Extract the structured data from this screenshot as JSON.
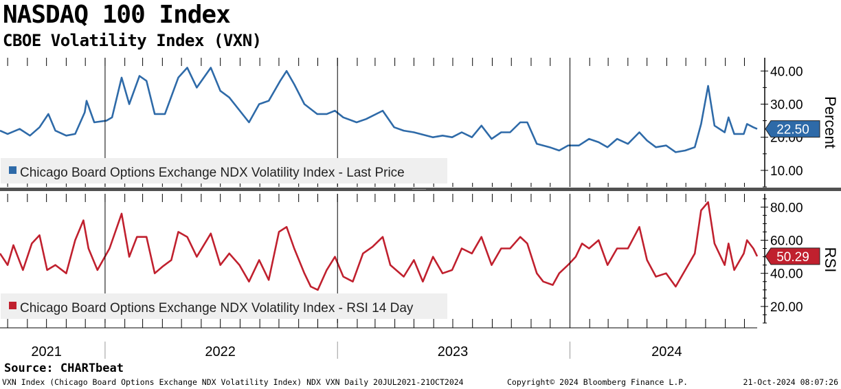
{
  "header": {
    "title": "NASDAQ 100 Index",
    "subtitle": "CBOE Volatility Index (VXN)"
  },
  "footer": {
    "source": "Source: CHARTbeat",
    "left": "VXN Index (Chicago Board Options Exchange NDX Volatility Index) NDX VXN  Daily 20JUL2021-21OCT2024",
    "middle": "Copyright© 2024 Bloomberg Finance L.P.",
    "right": "21-Oct-2024 08:07:26"
  },
  "colors": {
    "vxn_line": "#2e6aa8",
    "rsi_line": "#c0202e",
    "panel_divider": "#505050",
    "legend_bg": "#efefef"
  },
  "chart_data": [
    {
      "type": "line",
      "panel": "top",
      "axis_title": "Percent",
      "legend": "Chicago Board Options Exchange NDX Volatility Index - Last Price",
      "legend_placement": "bottom-left",
      "last_value_label": "22.50",
      "ylim": [
        5,
        44
      ],
      "yticks": [
        10,
        20,
        30,
        40
      ],
      "ytick_labels": [
        "10.00",
        "20.00",
        "30.00",
        "40.00"
      ],
      "grid": false,
      "x_start": "2021-07-20",
      "x_end": "2024-10-21",
      "year_labels": [
        "2021",
        "2022",
        "2023",
        "2024"
      ],
      "year_label_dates": [
        "2021-10-01",
        "2022-07-01",
        "2023-07-01",
        "2024-06-01"
      ],
      "year_starts": [
        "2022-01-01",
        "2023-01-01",
        "2024-01-01"
      ],
      "series": [
        {
          "name": "Chicago Board Options Exchange NDX Volatility Index - Last Price",
          "points": [
            [
              "2021-07-20",
              22
            ],
            [
              "2021-08-01",
              21
            ],
            [
              "2021-08-20",
              22.5
            ],
            [
              "2021-09-05",
              20.5
            ],
            [
              "2021-09-20",
              23
            ],
            [
              "2021-10-04",
              27
            ],
            [
              "2021-10-15",
              22
            ],
            [
              "2021-11-01",
              20.5
            ],
            [
              "2021-11-15",
              21
            ],
            [
              "2021-11-30",
              27.5
            ],
            [
              "2021-12-03",
              31
            ],
            [
              "2021-12-15",
              24.5
            ],
            [
              "2022-01-03",
              25
            ],
            [
              "2022-01-12",
              26
            ],
            [
              "2022-01-27",
              38
            ],
            [
              "2022-02-08",
              30
            ],
            [
              "2022-02-24",
              38.5
            ],
            [
              "2022-03-07",
              37
            ],
            [
              "2022-03-20",
              27
            ],
            [
              "2022-04-05",
              27
            ],
            [
              "2022-04-26",
              38
            ],
            [
              "2022-05-10",
              41
            ],
            [
              "2022-05-25",
              35
            ],
            [
              "2022-06-16",
              41
            ],
            [
              "2022-07-01",
              34
            ],
            [
              "2022-07-15",
              32
            ],
            [
              "2022-08-15",
              24.5
            ],
            [
              "2022-08-31",
              30
            ],
            [
              "2022-09-15",
              31
            ],
            [
              "2022-10-03",
              37
            ],
            [
              "2022-10-13",
              40
            ],
            [
              "2022-10-25",
              36
            ],
            [
              "2022-11-10",
              30
            ],
            [
              "2022-11-30",
              27
            ],
            [
              "2022-12-15",
              27
            ],
            [
              "2022-12-28",
              28
            ],
            [
              "2023-01-10",
              26
            ],
            [
              "2023-01-31",
              24.5
            ],
            [
              "2023-02-15",
              25.5
            ],
            [
              "2023-03-13",
              28
            ],
            [
              "2023-03-31",
              23
            ],
            [
              "2023-04-15",
              22
            ],
            [
              "2023-05-01",
              21.5
            ],
            [
              "2023-05-31",
              20
            ],
            [
              "2023-06-15",
              20.5
            ],
            [
              "2023-06-30",
              20
            ],
            [
              "2023-07-15",
              21.5
            ],
            [
              "2023-07-31",
              20
            ],
            [
              "2023-08-15",
              23.5
            ],
            [
              "2023-08-31",
              19.5
            ],
            [
              "2023-09-15",
              21.5
            ],
            [
              "2023-09-29",
              21.5
            ],
            [
              "2023-10-15",
              24.5
            ],
            [
              "2023-10-26",
              24.5
            ],
            [
              "2023-11-10",
              18
            ],
            [
              "2023-11-30",
              17
            ],
            [
              "2023-12-15",
              16
            ],
            [
              "2023-12-29",
              17.5
            ],
            [
              "2024-01-15",
              17.5
            ],
            [
              "2024-01-31",
              19.5
            ],
            [
              "2024-02-15",
              18.5
            ],
            [
              "2024-02-29",
              17
            ],
            [
              "2024-03-15",
              19.5
            ],
            [
              "2024-04-01",
              18
            ],
            [
              "2024-04-19",
              21.5
            ],
            [
              "2024-05-01",
              19
            ],
            [
              "2024-05-15",
              17
            ],
            [
              "2024-05-31",
              17.5
            ],
            [
              "2024-06-15",
              15.5
            ],
            [
              "2024-06-30",
              16
            ],
            [
              "2024-07-15",
              17
            ],
            [
              "2024-07-25",
              24
            ],
            [
              "2024-08-05",
              35.5
            ],
            [
              "2024-08-15",
              23.5
            ],
            [
              "2024-08-31",
              21.5
            ],
            [
              "2024-09-06",
              26
            ],
            [
              "2024-09-15",
              21
            ],
            [
              "2024-09-30",
              21
            ],
            [
              "2024-10-05",
              24
            ],
            [
              "2024-10-15",
              23
            ],
            [
              "2024-10-21",
              22.5
            ]
          ]
        }
      ]
    },
    {
      "type": "line",
      "panel": "bottom",
      "axis_title": "RSI",
      "legend": "Chicago Board Options Exchange NDX Volatility Index - RSI 14 Day",
      "legend_placement": "bottom-left",
      "last_value_label": "50.29",
      "ylim": [
        10,
        88
      ],
      "yticks": [
        20,
        40,
        60,
        80
      ],
      "ytick_labels": [
        "20.00",
        "40.00",
        "60.00",
        "80.00"
      ],
      "grid": false,
      "series": [
        {
          "name": "Chicago Board Options Exchange NDX Volatility Index - RSI 14 Day",
          "points": [
            [
              "2021-07-20",
              52
            ],
            [
              "2021-08-01",
              45
            ],
            [
              "2021-08-10",
              57
            ],
            [
              "2021-08-25",
              42
            ],
            [
              "2021-09-08",
              58
            ],
            [
              "2021-09-20",
              63
            ],
            [
              "2021-10-02",
              42
            ],
            [
              "2021-10-15",
              45
            ],
            [
              "2021-11-01",
              40
            ],
            [
              "2021-11-15",
              60
            ],
            [
              "2021-11-28",
              72
            ],
            [
              "2021-12-06",
              55
            ],
            [
              "2021-12-20",
              42
            ],
            [
              "2022-01-08",
              55
            ],
            [
              "2022-01-27",
              76
            ],
            [
              "2022-02-08",
              50
            ],
            [
              "2022-02-20",
              62
            ],
            [
              "2022-03-07",
              62
            ],
            [
              "2022-03-20",
              40
            ],
            [
              "2022-04-01",
              44
            ],
            [
              "2022-04-15",
              48
            ],
            [
              "2022-04-26",
              65
            ],
            [
              "2022-05-10",
              62
            ],
            [
              "2022-05-25",
              50
            ],
            [
              "2022-06-16",
              64
            ],
            [
              "2022-07-01",
              45
            ],
            [
              "2022-07-15",
              52
            ],
            [
              "2022-07-31",
              45
            ],
            [
              "2022-08-15",
              35
            ],
            [
              "2022-08-31",
              48
            ],
            [
              "2022-09-15",
              36
            ],
            [
              "2022-10-01",
              65
            ],
            [
              "2022-10-13",
              68
            ],
            [
              "2022-10-25",
              55
            ],
            [
              "2022-11-10",
              40
            ],
            [
              "2022-11-20",
              32
            ],
            [
              "2022-12-01",
              30
            ],
            [
              "2022-12-15",
              42
            ],
            [
              "2022-12-28",
              50
            ],
            [
              "2023-01-10",
              38
            ],
            [
              "2023-01-25",
              35
            ],
            [
              "2023-02-10",
              52
            ],
            [
              "2023-02-25",
              56
            ],
            [
              "2023-03-13",
              62
            ],
            [
              "2023-03-25",
              45
            ],
            [
              "2023-04-15",
              38
            ],
            [
              "2023-05-01",
              48
            ],
            [
              "2023-05-15",
              35
            ],
            [
              "2023-05-31",
              50
            ],
            [
              "2023-06-15",
              40
            ],
            [
              "2023-06-30",
              42
            ],
            [
              "2023-07-15",
              55
            ],
            [
              "2023-07-31",
              52
            ],
            [
              "2023-08-15",
              62
            ],
            [
              "2023-08-31",
              45
            ],
            [
              "2023-09-15",
              55
            ],
            [
              "2023-09-29",
              55
            ],
            [
              "2023-10-15",
              62
            ],
            [
              "2023-10-26",
              58
            ],
            [
              "2023-11-10",
              40
            ],
            [
              "2023-11-20",
              35
            ],
            [
              "2023-12-05",
              33
            ],
            [
              "2023-12-15",
              40
            ],
            [
              "2023-12-29",
              45
            ],
            [
              "2024-01-10",
              50
            ],
            [
              "2024-01-20",
              58
            ],
            [
              "2024-01-31",
              55
            ],
            [
              "2024-02-15",
              60
            ],
            [
              "2024-02-29",
              45
            ],
            [
              "2024-03-15",
              55
            ],
            [
              "2024-04-01",
              55
            ],
            [
              "2024-04-19",
              68
            ],
            [
              "2024-05-01",
              48
            ],
            [
              "2024-05-15",
              38
            ],
            [
              "2024-05-31",
              40
            ],
            [
              "2024-06-15",
              32
            ],
            [
              "2024-06-30",
              42
            ],
            [
              "2024-07-15",
              52
            ],
            [
              "2024-07-25",
              78
            ],
            [
              "2024-08-05",
              83
            ],
            [
              "2024-08-15",
              58
            ],
            [
              "2024-08-31",
              45
            ],
            [
              "2024-09-06",
              58
            ],
            [
              "2024-09-15",
              42
            ],
            [
              "2024-09-30",
              52
            ],
            [
              "2024-10-05",
              60
            ],
            [
              "2024-10-15",
              55
            ],
            [
              "2024-10-21",
              50.29
            ]
          ]
        }
      ]
    }
  ]
}
